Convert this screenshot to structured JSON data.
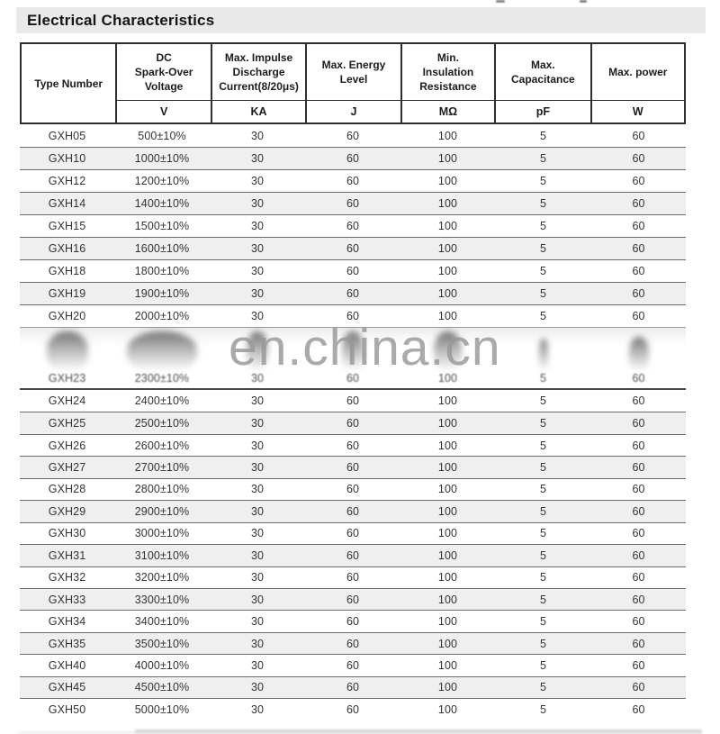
{
  "page": {
    "title": "Electrical Characteristics"
  },
  "watermark": "en.china.cn",
  "table": {
    "columns": [
      {
        "label": "Type Number",
        "unit": ""
      },
      {
        "label": "DC\nSpark-Over\nVoltage",
        "unit": "V"
      },
      {
        "label": "Max. Impulse\nDischarge\nCurrent(8/20μs)",
        "unit": "KA"
      },
      {
        "label": "Max. Energy\nLevel",
        "unit": "J"
      },
      {
        "label": "Min.\nInsulation\nResistance",
        "unit": "MΩ"
      },
      {
        "label": "Max.\nCapacitance",
        "unit": "pF"
      },
      {
        "label": "Max. power",
        "unit": "W"
      }
    ],
    "rows_top": [
      [
        "GXH05",
        "500±10%",
        "30",
        "60",
        "100",
        "5",
        "60"
      ],
      [
        "GXH10",
        "1000±10%",
        "30",
        "60",
        "100",
        "5",
        "60"
      ],
      [
        "GXH12",
        "1200±10%",
        "30",
        "60",
        "100",
        "5",
        "60"
      ],
      [
        "GXH14",
        "1400±10%",
        "30",
        "60",
        "100",
        "5",
        "60"
      ],
      [
        "GXH15",
        "1500±10%",
        "30",
        "60",
        "100",
        "5",
        "60"
      ],
      [
        "GXH16",
        "1600±10%",
        "30",
        "60",
        "100",
        "5",
        "60"
      ],
      [
        "GXH18",
        "1800±10%",
        "30",
        "60",
        "100",
        "5",
        "60"
      ],
      [
        "GXH19",
        "1900±10%",
        "30",
        "60",
        "100",
        "5",
        "60"
      ],
      [
        "GXH20",
        "2000±10%",
        "30",
        "60",
        "100",
        "5",
        "60"
      ]
    ],
    "blurred_row": [
      "GXH23",
      "2300±10%",
      "30",
      "60",
      "100",
      "5",
      "60"
    ],
    "rows_bottom": [
      [
        "GXH24",
        "2400±10%",
        "30",
        "60",
        "100",
        "5",
        "60"
      ],
      [
        "GXH25",
        "2500±10%",
        "30",
        "60",
        "100",
        "5",
        "60"
      ],
      [
        "GXH26",
        "2600±10%",
        "30",
        "60",
        "100",
        "5",
        "60"
      ],
      [
        "GXH27",
        "2700±10%",
        "30",
        "60",
        "100",
        "5",
        "60"
      ],
      [
        "GXH28",
        "2800±10%",
        "30",
        "60",
        "100",
        "5",
        "60"
      ],
      [
        "GXH29",
        "2900±10%",
        "30",
        "60",
        "100",
        "5",
        "60"
      ],
      [
        "GXH30",
        "3000±10%",
        "30",
        "60",
        "100",
        "5",
        "60"
      ],
      [
        "GXH31",
        "3100±10%",
        "30",
        "60",
        "100",
        "5",
        "60"
      ],
      [
        "GXH32",
        "3200±10%",
        "30",
        "60",
        "100",
        "5",
        "60"
      ],
      [
        "GXH33",
        "3300±10%",
        "30",
        "60",
        "100",
        "5",
        "60"
      ],
      [
        "GXH34",
        "3400±10%",
        "30",
        "60",
        "100",
        "5",
        "60"
      ],
      [
        "GXH35",
        "3500±10%",
        "30",
        "60",
        "100",
        "5",
        "60"
      ],
      [
        "GXH40",
        "4000±10%",
        "30",
        "60",
        "100",
        "5",
        "60"
      ],
      [
        "GXH45",
        "4500±10%",
        "30",
        "60",
        "100",
        "5",
        "60"
      ],
      [
        "GXH50",
        "5000±10%",
        "30",
        "60",
        "100",
        "5",
        "60"
      ]
    ],
    "colors": {
      "shaded_row": "#efefef",
      "row_separator": "#6b6b6b",
      "header_border": "#2e2e2e",
      "title_bar_bg": "#e9e9e9",
      "watermark_gray": "#989898"
    }
  }
}
